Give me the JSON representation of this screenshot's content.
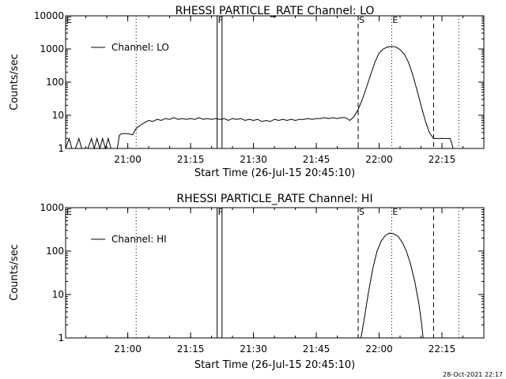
{
  "footer": {
    "timestamp": "28-Oct-2021 22:17"
  },
  "chart_data": [
    {
      "type": "line",
      "scale_y": "log",
      "title": "RHESSI PARTICLE_RATE Channel: LO",
      "xlabel": "Start Time (26-Jul-15 20:45:10)",
      "ylabel": "Counts/sec",
      "xlim": [
        "20:45:10",
        "22:25:00"
      ],
      "ylim": [
        1,
        10000
      ],
      "y_ticks": [
        1,
        10,
        100,
        1000,
        10000
      ],
      "y_tick_labels": [
        "1",
        "10",
        "100",
        "1000",
        "10000"
      ],
      "x_ticks": [
        "21:00",
        "21:15",
        "21:30",
        "21:45",
        "22:00",
        "22:15"
      ],
      "legend": {
        "position": "top-left",
        "entries": [
          "Channel: LO"
        ]
      },
      "series": [
        {
          "name": "Channel: LO",
          "points": [
            [
              "20:45:10",
              1
            ],
            [
              "20:46:00",
              2
            ],
            [
              "20:46:40",
              1
            ],
            [
              "20:47:30",
              1
            ],
            [
              "20:48:20",
              2
            ],
            [
              "20:49:00",
              1
            ],
            [
              "20:50:30",
              1
            ],
            [
              "20:51:20",
              2
            ],
            [
              "20:52:00",
              1
            ],
            [
              "20:52:40",
              2
            ],
            [
              "20:53:20",
              1
            ],
            [
              "20:54:00",
              2
            ],
            [
              "20:54:40",
              1
            ],
            [
              "20:55:20",
              2
            ],
            [
              "20:56:00",
              1
            ],
            [
              "20:57:30",
              1
            ],
            [
              "20:58:00",
              2.5
            ],
            [
              "20:58:30",
              2.8
            ],
            [
              "21:00:00",
              2.8
            ],
            [
              "21:01:10",
              2.6
            ],
            [
              "21:02:00",
              4
            ],
            [
              "21:03:00",
              5
            ],
            [
              "21:04:00",
              6
            ],
            [
              "21:05:00",
              7
            ],
            [
              "21:06:00",
              6.5
            ],
            [
              "21:07:00",
              7.5
            ],
            [
              "21:08:00",
              7
            ],
            [
              "21:09:00",
              8
            ],
            [
              "21:10:00",
              7.5
            ],
            [
              "21:11:00",
              8.5
            ],
            [
              "21:12:00",
              7.5
            ],
            [
              "21:13:00",
              8
            ],
            [
              "21:14:00",
              7.5
            ],
            [
              "21:15:00",
              8
            ],
            [
              "21:16:00",
              7.5
            ],
            [
              "21:17:00",
              8.5
            ],
            [
              "21:18:00",
              7.5
            ],
            [
              "21:19:00",
              8
            ],
            [
              "21:20:00",
              7.5
            ],
            [
              "21:21:00",
              8
            ],
            [
              "21:22:00",
              7.5
            ],
            [
              "21:23:00",
              8
            ],
            [
              "21:24:00",
              7
            ],
            [
              "21:25:00",
              8
            ],
            [
              "21:26:00",
              7.5
            ],
            [
              "21:27:00",
              8
            ],
            [
              "21:28:00",
              7
            ],
            [
              "21:29:00",
              7.5
            ],
            [
              "21:30:00",
              7
            ],
            [
              "21:31:00",
              7.5
            ],
            [
              "21:32:00",
              6.5
            ],
            [
              "21:33:00",
              7
            ],
            [
              "21:34:00",
              6.5
            ],
            [
              "21:35:00",
              7.5
            ],
            [
              "21:36:00",
              7
            ],
            [
              "21:37:00",
              7.5
            ],
            [
              "21:38:00",
              7
            ],
            [
              "21:39:00",
              7.5
            ],
            [
              "21:40:00",
              7
            ],
            [
              "21:41:00",
              7.5
            ],
            [
              "21:42:00",
              7.5
            ],
            [
              "21:43:00",
              8
            ],
            [
              "21:44:00",
              7.5
            ],
            [
              "21:45:00",
              8
            ],
            [
              "21:46:00",
              8
            ],
            [
              "21:47:00",
              8.5
            ],
            [
              "21:48:00",
              8
            ],
            [
              "21:49:00",
              8.5
            ],
            [
              "21:50:00",
              8
            ],
            [
              "21:51:00",
              8.5
            ],
            [
              "21:52:00",
              8.5
            ],
            [
              "21:53:00",
              7
            ],
            [
              "21:54:00",
              9
            ],
            [
              "21:55:00",
              15
            ],
            [
              "21:56:00",
              30
            ],
            [
              "21:57:00",
              70
            ],
            [
              "21:58:00",
              170
            ],
            [
              "21:59:00",
              400
            ],
            [
              "22:00:00",
              750
            ],
            [
              "22:01:00",
              1000
            ],
            [
              "22:02:00",
              1150
            ],
            [
              "22:03:00",
              1200
            ],
            [
              "22:04:00",
              1150
            ],
            [
              "22:05:00",
              950
            ],
            [
              "22:06:00",
              700
            ],
            [
              "22:07:00",
              400
            ],
            [
              "22:08:00",
              170
            ],
            [
              "22:09:00",
              60
            ],
            [
              "22:10:00",
              20
            ],
            [
              "22:11:00",
              7
            ],
            [
              "22:12:00",
              3
            ],
            [
              "22:13:00",
              2
            ],
            [
              "22:14:00",
              2
            ],
            [
              "22:15:00",
              2
            ],
            [
              "22:16:00",
              2
            ],
            [
              "22:17:00",
              2
            ],
            [
              "22:17:40",
              1
            ]
          ]
        }
      ],
      "markers": [
        {
          "time": "21:02:00",
          "style": "dotted",
          "label": ""
        },
        {
          "time": "21:21:20",
          "style": "solid",
          "label": "F"
        },
        {
          "time": "21:22:30",
          "style": "solid",
          "label": ""
        },
        {
          "time": "21:55:00",
          "style": "dashed",
          "label": "S"
        },
        {
          "time": "22:03:00",
          "style": "dotted",
          "label": "E"
        },
        {
          "time": "22:13:00",
          "style": "dashed",
          "label": ""
        },
        {
          "time": "22:19:00",
          "style": "dotted",
          "label": ""
        }
      ],
      "corner_marker": "E"
    },
    {
      "type": "line",
      "scale_y": "log",
      "title": "RHESSI PARTICLE_RATE Channel: HI",
      "xlabel": "Start Time (26-Jul-15 20:45:10)",
      "ylabel": "Counts/sec",
      "xlim": [
        "20:45:10",
        "22:25:00"
      ],
      "ylim": [
        1,
        1000
      ],
      "y_ticks": [
        1,
        10,
        100,
        1000
      ],
      "y_tick_labels": [
        "1",
        "10",
        "100",
        "1000"
      ],
      "x_ticks": [
        "21:00",
        "21:15",
        "21:30",
        "21:45",
        "22:00",
        "22:15"
      ],
      "legend": {
        "position": "top-left",
        "entries": [
          "Channel: HI"
        ]
      },
      "series": [
        {
          "name": "Channel: HI",
          "points": [
            [
              "21:55:40",
              1
            ],
            [
              "21:56:30",
              3
            ],
            [
              "21:57:30",
              12
            ],
            [
              "21:58:30",
              40
            ],
            [
              "21:59:30",
              100
            ],
            [
              "22:00:30",
              170
            ],
            [
              "22:01:30",
              230
            ],
            [
              "22:02:30",
              260
            ],
            [
              "22:03:30",
              250
            ],
            [
              "22:04:30",
              220
            ],
            [
              "22:05:30",
              160
            ],
            [
              "22:06:30",
              100
            ],
            [
              "22:07:30",
              50
            ],
            [
              "22:08:30",
              20
            ],
            [
              "22:09:30",
              6
            ],
            [
              "22:10:10",
              2
            ],
            [
              "22:10:30",
              1
            ]
          ]
        }
      ],
      "markers": [
        {
          "time": "21:02:00",
          "style": "dotted",
          "label": ""
        },
        {
          "time": "21:21:20",
          "style": "solid",
          "label": "F"
        },
        {
          "time": "21:22:30",
          "style": "solid",
          "label": ""
        },
        {
          "time": "21:55:00",
          "style": "dashed",
          "label": "S"
        },
        {
          "time": "22:03:00",
          "style": "dotted",
          "label": "E"
        },
        {
          "time": "22:13:00",
          "style": "dashed",
          "label": ""
        },
        {
          "time": "22:19:00",
          "style": "dotted",
          "label": ""
        }
      ],
      "corner_marker": "E"
    }
  ]
}
